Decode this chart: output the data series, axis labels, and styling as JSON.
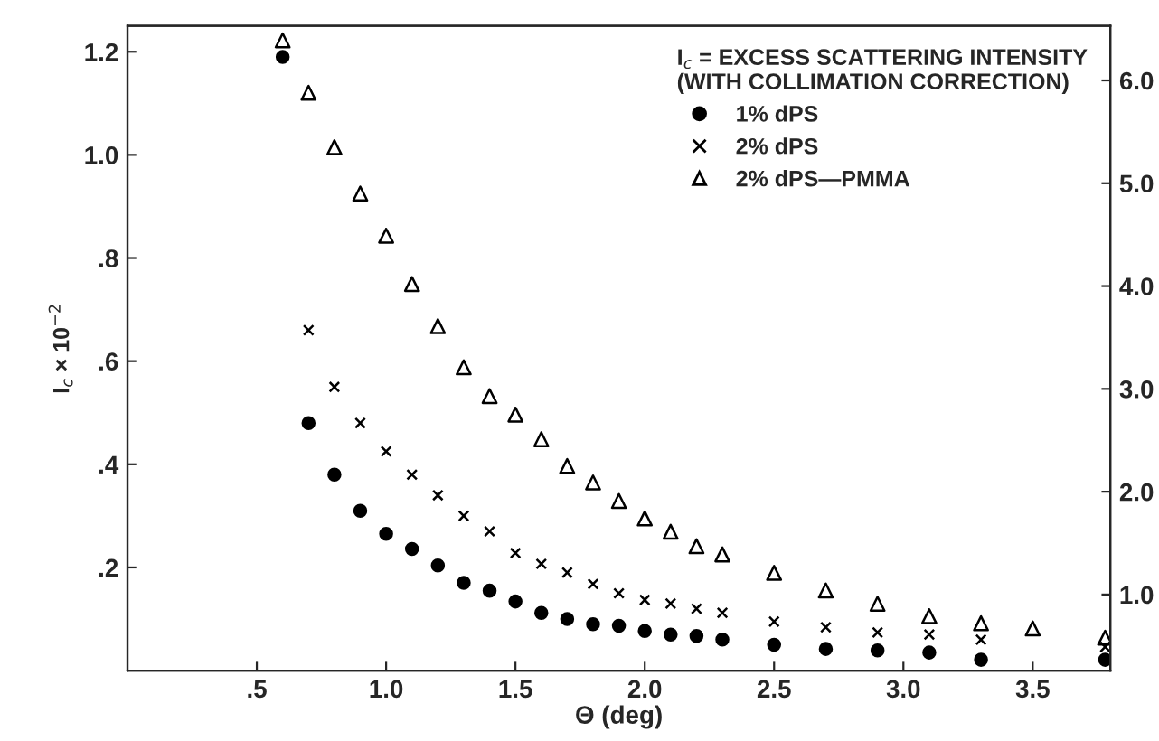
{
  "chart_data": {
    "type": "scatter",
    "xlabel": "Θ (deg)",
    "ylabel": "I$_{c}$ × 10$^{−2}$",
    "legend_title": "I$_{c}$ = EXCESS SCATTERING INTENSITY\n(WITH COLLIMATION CORRECTION)",
    "xlim": [
      0,
      3.8
    ],
    "xticks": [
      {
        "value": 0.5,
        "label": ".5"
      },
      {
        "value": 1.0,
        "label": "1.0"
      },
      {
        "value": 1.5,
        "label": "1.5"
      },
      {
        "value": 2.0,
        "label": "2.0"
      },
      {
        "value": 2.5,
        "label": "2.5"
      },
      {
        "value": 3.0,
        "label": "3.0"
      },
      {
        "value": 3.5,
        "label": "3.5"
      }
    ],
    "ylim": [
      0,
      1.25
    ],
    "yticks": [
      {
        "value": 0.2,
        "label": ".2"
      },
      {
        "value": 0.4,
        "label": ".4"
      },
      {
        "value": 0.6,
        "label": ".6"
      },
      {
        "value": 0.8,
        "label": ".8"
      },
      {
        "value": 1.0,
        "label": "1.0"
      },
      {
        "value": 1.2,
        "label": "1.2"
      }
    ],
    "y2lim": [
      0.26,
      6.53
    ],
    "y2ticks": [
      {
        "value": 1,
        "label": "1.0"
      },
      {
        "value": 2,
        "label": "2.0"
      },
      {
        "value": 3,
        "label": "3.0"
      },
      {
        "value": 4,
        "label": "4.0"
      },
      {
        "value": 5,
        "label": "5.0"
      },
      {
        "value": 6,
        "label": "6.0"
      }
    ],
    "legend": "top right",
    "grid": false,
    "series": [
      {
        "name": "1% dPS",
        "color": "#000000",
        "marker": "circle",
        "x": [
          0.6,
          0.7,
          0.8,
          0.9,
          1.0,
          1.1,
          1.2,
          1.3,
          1.4,
          1.5,
          1.6,
          1.7,
          1.8,
          1.9,
          2.0,
          2.1,
          2.2,
          2.3,
          2.5,
          2.7,
          2.9,
          3.1,
          3.3,
          3.78
        ],
        "values": [
          1.19,
          0.48,
          0.38,
          0.31,
          0.265,
          0.236,
          0.204,
          0.17,
          0.155,
          0.134,
          0.112,
          0.1,
          0.09,
          0.087,
          0.077,
          0.07,
          0.067,
          0.06,
          0.05,
          0.042,
          0.039,
          0.035,
          0.021,
          0.021
        ]
      },
      {
        "name": "2% dPS",
        "color": "#000000",
        "marker": "cross",
        "x": [
          0.7,
          0.8,
          0.9,
          1.0,
          1.1,
          1.2,
          1.3,
          1.4,
          1.5,
          1.6,
          1.7,
          1.8,
          1.9,
          2.0,
          2.1,
          2.2,
          2.3,
          2.5,
          2.7,
          2.9,
          3.1,
          3.3,
          3.78
        ],
        "values": [
          0.66,
          0.55,
          0.48,
          0.425,
          0.38,
          0.34,
          0.3,
          0.27,
          0.228,
          0.207,
          0.19,
          0.168,
          0.15,
          0.137,
          0.13,
          0.12,
          0.112,
          0.095,
          0.084,
          0.074,
          0.07,
          0.06,
          0.046
        ]
      },
      {
        "name": "2% dPS—PMMA",
        "color": "#000000",
        "marker": "triangle",
        "axis": "y2",
        "x": [
          0.6,
          0.7,
          0.8,
          0.9,
          1.0,
          1.1,
          1.2,
          1.3,
          1.4,
          1.5,
          1.6,
          1.7,
          1.8,
          1.9,
          2.0,
          2.1,
          2.2,
          2.3,
          2.5,
          2.7,
          2.9,
          3.1,
          3.3,
          3.5,
          3.78
        ],
        "values": [
          6.39,
          5.88,
          5.35,
          4.9,
          4.49,
          4.02,
          3.61,
          3.21,
          2.93,
          2.75,
          2.51,
          2.25,
          2.09,
          1.91,
          1.74,
          1.61,
          1.47,
          1.39,
          1.21,
          1.04,
          0.91,
          0.79,
          0.72,
          0.67,
          0.58
        ]
      }
    ]
  }
}
